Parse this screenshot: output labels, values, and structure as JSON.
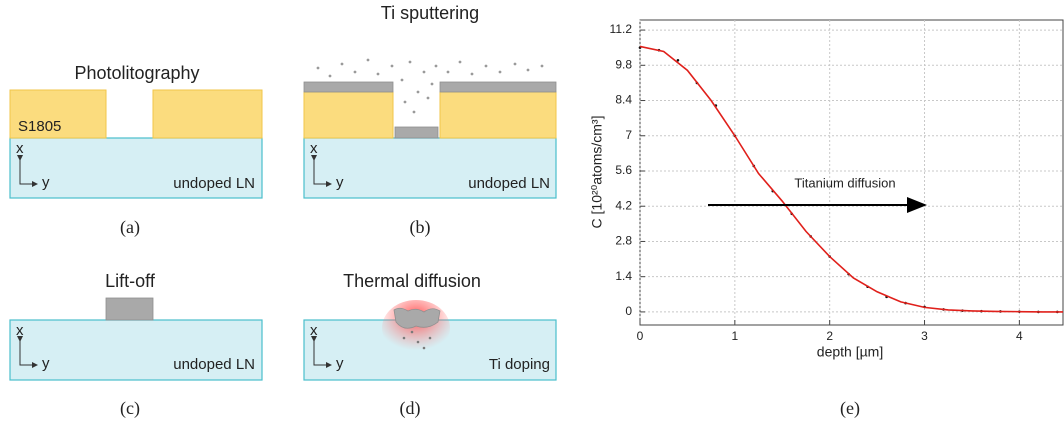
{
  "panels": [
    {
      "title": "Photolitography",
      "resist": "S1805",
      "axis_x": "x",
      "axis_y": "y",
      "substrate": "undoped LN",
      "label": "(a)"
    },
    {
      "title": "Ti sputtering",
      "axis_x": "x",
      "axis_y": "y",
      "substrate": "undoped LN",
      "label": "(b)"
    },
    {
      "title": "Lift-off",
      "axis_x": "x",
      "axis_y": "y",
      "substrate": "undoped LN",
      "label": "(c)"
    },
    {
      "title": "Thermal diffusion",
      "axis_x": "x",
      "axis_y": "y",
      "substrate": "Ti doping",
      "label": "(d)"
    }
  ],
  "chart_data": {
    "type": "scatter-line",
    "label": "(e)",
    "x_label": "depth [µm]",
    "y_label": "C [10²⁰atoms/cm³]",
    "annotation": "Titanium diffusion",
    "xlim": [
      0,
      4.46
    ],
    "ylim": [
      -0.52,
      11.6
    ],
    "xticks": [
      0,
      1,
      2,
      3,
      4
    ],
    "yticks": [
      0,
      1.4,
      2.8,
      4.2,
      5.6,
      7,
      8.4,
      9.8,
      11.2
    ],
    "grid": true,
    "series": [
      {
        "color": "#111111",
        "style": "points",
        "x": [
          0,
          0.2,
          0.4,
          0.6,
          0.8,
          1.0,
          1.2,
          1.4,
          1.6,
          1.8,
          2.0,
          2.2,
          2.4,
          2.6,
          2.8,
          3.0,
          3.2,
          3.4,
          3.6,
          3.8,
          4.0,
          4.2,
          4.4
        ],
        "values": [
          10.5,
          10.4,
          10.0,
          9.1,
          8.2,
          7.0,
          5.8,
          4.8,
          3.9,
          3.0,
          2.2,
          1.5,
          1.0,
          0.6,
          0.35,
          0.2,
          0.1,
          0.05,
          0.03,
          0.02,
          0.01,
          0.0,
          0.0
        ]
      },
      {
        "color": "#e0201b",
        "style": "line",
        "x": [
          0,
          0.25,
          0.5,
          0.75,
          1.0,
          1.25,
          1.5,
          1.75,
          2.0,
          2.25,
          2.5,
          2.75,
          3.0,
          3.25,
          3.5,
          3.75,
          4.0,
          4.25,
          4.46
        ],
        "values": [
          10.55,
          10.35,
          9.6,
          8.4,
          7.0,
          5.5,
          4.4,
          3.2,
          2.2,
          1.35,
          0.8,
          0.4,
          0.18,
          0.08,
          0.04,
          0.02,
          0.01,
          0.0,
          0.0
        ]
      }
    ]
  }
}
